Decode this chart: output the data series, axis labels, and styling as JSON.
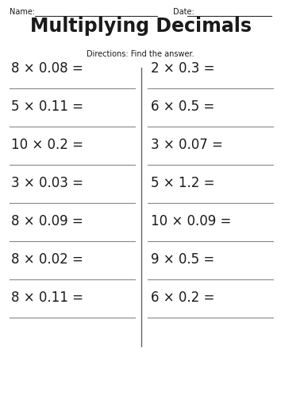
{
  "title": "Multiplying Decimals",
  "directions": "Directions: Find the answer.",
  "name_label": "Name:",
  "date_label": "Date:",
  "bg_color": "#ffffff",
  "text_color": "#1a1a1a",
  "line_color": "#888888",
  "divider_color": "#555555",
  "left_problems": [
    "8 × 0.08 =",
    "5 × 0.11 =",
    "10 × 0.2 =",
    "3 × 0.03 =",
    "8 × 0.09 =",
    "8 × 0.02 =",
    "8 × 0.11 ="
  ],
  "right_problems": [
    "2 × 0.3 =",
    "6 × 0.5 =",
    "3 × 0.07 =",
    "5 × 1.2 =",
    "10 × 0.09 =",
    "9 × 0.5 =",
    "6 × 0.2 ="
  ],
  "title_fontsize": 17,
  "directions_fontsize": 7,
  "problem_fontsize": 12,
  "header_fontsize": 7,
  "fig_width": 3.54,
  "fig_height": 5.0,
  "dpi": 100
}
